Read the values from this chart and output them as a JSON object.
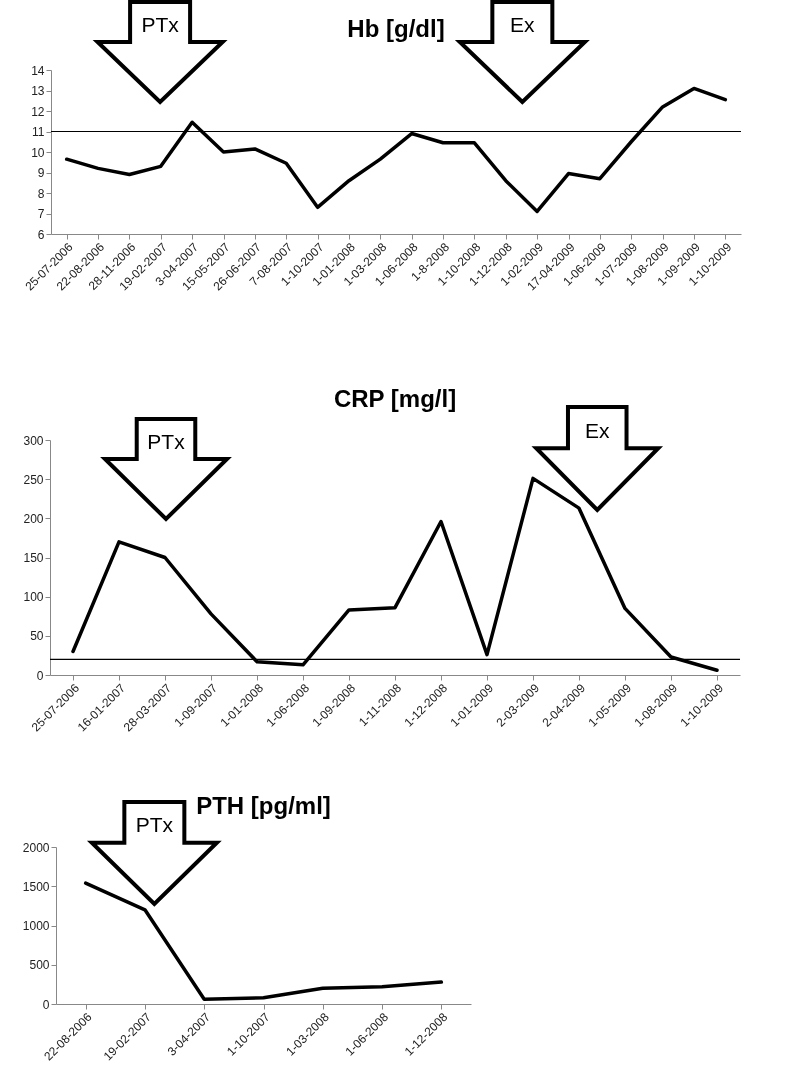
{
  "chart_data": [
    {
      "type": "line",
      "title": "Hb [g/dl]",
      "categories": [
        "25-07-2006",
        "22-08-2006",
        "28-11-2006",
        "19-02-2007",
        "3-04-2007",
        "15-05-2007",
        "26-06-2007",
        "7-08-2007",
        "1-10-2007",
        "1-01-2008",
        "1-03-2008",
        "1-06-2008",
        "1-8-2008",
        "1-10-2008",
        "1-12-2008",
        "1-02-2009",
        "17-04-2009",
        "1-06-2009",
        "1-07-2009",
        "1-08-2009",
        "1-09-2009",
        "1-10-2009"
      ],
      "series": [
        {
          "color": "#000000",
          "values": [
            9.65,
            9.2,
            8.9,
            9.3,
            11.45,
            10.0,
            10.15,
            9.45,
            7.3,
            8.6,
            9.65,
            10.9,
            10.45,
            10.45,
            8.6,
            7.1,
            8.95,
            8.7,
            10.5,
            12.2,
            13.1,
            12.55
          ]
        }
      ],
      "ylim": [
        6,
        14
      ],
      "yticks": [
        6,
        7,
        8,
        9,
        10,
        11,
        12,
        13,
        14
      ],
      "ref_lines": [
        {
          "axis": "y",
          "value": 11
        }
      ],
      "annotations": [
        "PTx",
        "Ex"
      ]
    },
    {
      "type": "line",
      "title": "CRP [mg/l]",
      "categories": [
        "25-07-2006",
        "16-01-2007",
        "28-03-2007",
        "1-09-2007",
        "1-01-2008",
        "1-06-2008",
        "1-09-2008",
        "1-11-2008",
        "1-12-2008",
        "1-01-2009",
        "2-03-2009",
        "2-04-2009",
        "1-05-2009",
        "1-08-2009",
        "1-10-2009"
      ],
      "series": [
        {
          "color": "#000000",
          "values": [
            30,
            170,
            150,
            78,
            17,
            13,
            83,
            86,
            196,
            26,
            251,
            213,
            85,
            23,
            6
          ]
        }
      ],
      "ylim": [
        0,
        300
      ],
      "yticks": [
        0,
        50,
        100,
        150,
        200,
        250,
        300
      ],
      "ref_lines": [
        {
          "axis": "y",
          "value": 20
        }
      ],
      "annotations": [
        "PTx",
        "Ex"
      ]
    },
    {
      "type": "line",
      "title": "PTH [pg/ml]",
      "categories": [
        "22-08-2006",
        "19-02-2007",
        "3-04-2007",
        "1-10-2007",
        "1-03-2008",
        "1-06-2008",
        "1-12-2008"
      ],
      "series": [
        {
          "color": "#000000",
          "values": [
            1540,
            1200,
            60,
            80,
            200,
            220,
            280
          ]
        }
      ],
      "ylim": [
        0,
        2000
      ],
      "yticks": [
        0,
        500,
        1000,
        1500,
        2000
      ],
      "annotations": [
        "PTx"
      ]
    }
  ]
}
